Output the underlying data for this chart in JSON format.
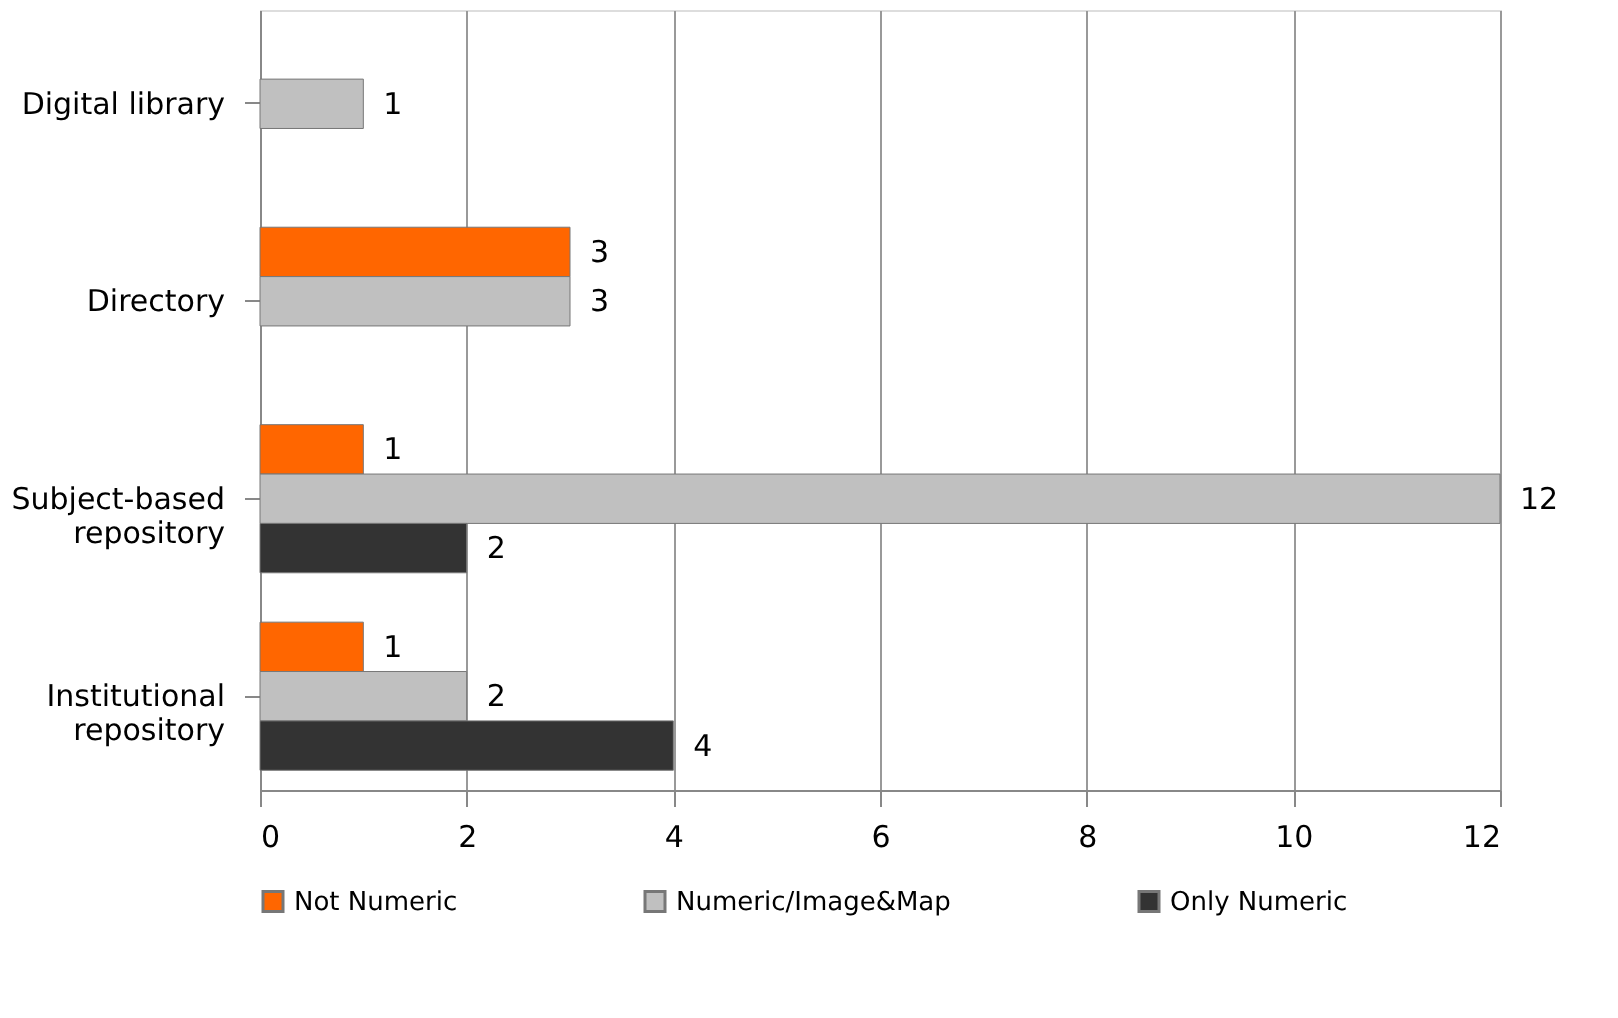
{
  "chart_data": {
    "type": "bar",
    "orientation": "horizontal",
    "categories": [
      "Digital library",
      "Directory",
      "Subject-based repository",
      "Institutional repository"
    ],
    "series": [
      {
        "name": "Not Numeric",
        "color": "#ff6600",
        "values": [
          null,
          3,
          1,
          1
        ]
      },
      {
        "name": "Numeric/Image&Map",
        "color": "#c0c0c0",
        "values": [
          1,
          3,
          12,
          2
        ]
      },
      {
        "name": "Only Numeric",
        "color": "#333333",
        "values": [
          null,
          null,
          2,
          4
        ]
      }
    ],
    "xlim": [
      0,
      12
    ],
    "xticks": [
      0,
      2,
      4,
      6,
      8,
      10,
      12
    ],
    "grid": "x",
    "legend": "bottom",
    "data_labels": true
  }
}
